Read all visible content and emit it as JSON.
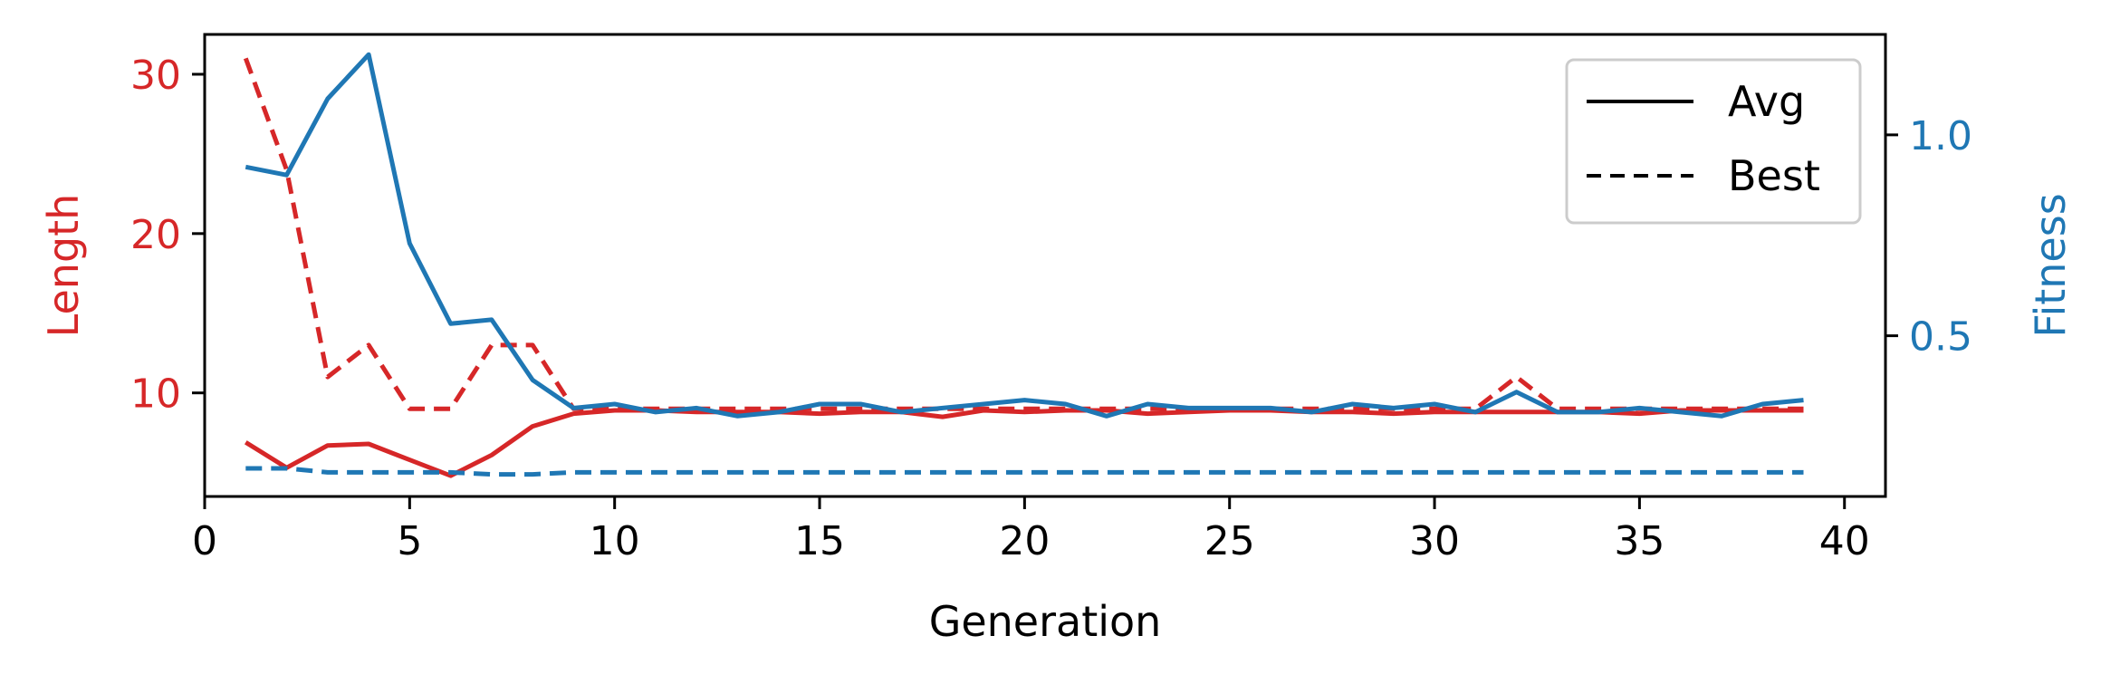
{
  "chart_data": {
    "type": "line",
    "xlabel": "Generation",
    "ylabel_left": "Length",
    "ylabel_right": "Fitness",
    "xlim": [
      0,
      41
    ],
    "ylim_left": [
      3.5,
      32.5
    ],
    "ylim_right": [
      0.1,
      1.25
    ],
    "xticks": [
      0,
      5,
      10,
      15,
      20,
      25,
      30,
      35,
      40
    ],
    "yticks_left": [
      10,
      20,
      30
    ],
    "yticks_right": [
      0.5,
      1.0
    ],
    "left_color": "#d62728",
    "right_color": "#1f77b4",
    "legend": {
      "placement": "top-right",
      "entries": [
        {
          "label": "Avg",
          "style": "solid"
        },
        {
          "label": "Best",
          "style": "dashed"
        }
      ]
    },
    "x": [
      1,
      2,
      3,
      4,
      5,
      6,
      7,
      8,
      9,
      10,
      11,
      12,
      13,
      14,
      15,
      16,
      17,
      18,
      19,
      20,
      21,
      22,
      23,
      24,
      25,
      26,
      27,
      28,
      29,
      30,
      31,
      32,
      33,
      34,
      35,
      36,
      37,
      38,
      39
    ],
    "series": [
      {
        "axis": "left",
        "style": "solid",
        "values": [
          6.9,
          5.3,
          6.7,
          6.8,
          5.8,
          4.8,
          6.1,
          7.9,
          8.7,
          8.9,
          8.9,
          8.8,
          8.8,
          8.8,
          8.7,
          8.8,
          8.8,
          8.5,
          8.9,
          8.8,
          8.9,
          8.9,
          8.7,
          8.8,
          8.9,
          8.9,
          8.8,
          8.8,
          8.7,
          8.8,
          8.8,
          8.8,
          8.8,
          8.8,
          8.7,
          8.9,
          8.9,
          8.9,
          8.9
        ]
      },
      {
        "axis": "left",
        "style": "dashed",
        "values": [
          31,
          24,
          11,
          13,
          9,
          9,
          13,
          13,
          9,
          9,
          9,
          9,
          9,
          9,
          9,
          9,
          9,
          9,
          9,
          9,
          9,
          9,
          9,
          9,
          9,
          9,
          9,
          9,
          9,
          9,
          9,
          11,
          9,
          9,
          9,
          9,
          9,
          9,
          9
        ]
      },
      {
        "axis": "right",
        "style": "solid",
        "values": [
          0.92,
          0.9,
          1.09,
          1.2,
          0.73,
          0.53,
          0.54,
          0.39,
          0.32,
          0.33,
          0.31,
          0.32,
          0.3,
          0.31,
          0.33,
          0.33,
          0.31,
          0.32,
          0.33,
          0.34,
          0.33,
          0.3,
          0.33,
          0.32,
          0.32,
          0.32,
          0.31,
          0.33,
          0.32,
          0.33,
          0.31,
          0.36,
          0.31,
          0.31,
          0.32,
          0.31,
          0.3,
          0.33,
          0.34
        ]
      },
      {
        "axis": "right",
        "style": "dashed",
        "values": [
          0.17,
          0.17,
          0.16,
          0.16,
          0.16,
          0.16,
          0.155,
          0.155,
          0.16,
          0.16,
          0.16,
          0.16,
          0.16,
          0.16,
          0.16,
          0.16,
          0.16,
          0.16,
          0.16,
          0.16,
          0.16,
          0.16,
          0.16,
          0.16,
          0.16,
          0.16,
          0.16,
          0.16,
          0.16,
          0.16,
          0.16,
          0.16,
          0.16,
          0.16,
          0.16,
          0.16,
          0.16,
          0.16,
          0.16
        ]
      }
    ]
  }
}
